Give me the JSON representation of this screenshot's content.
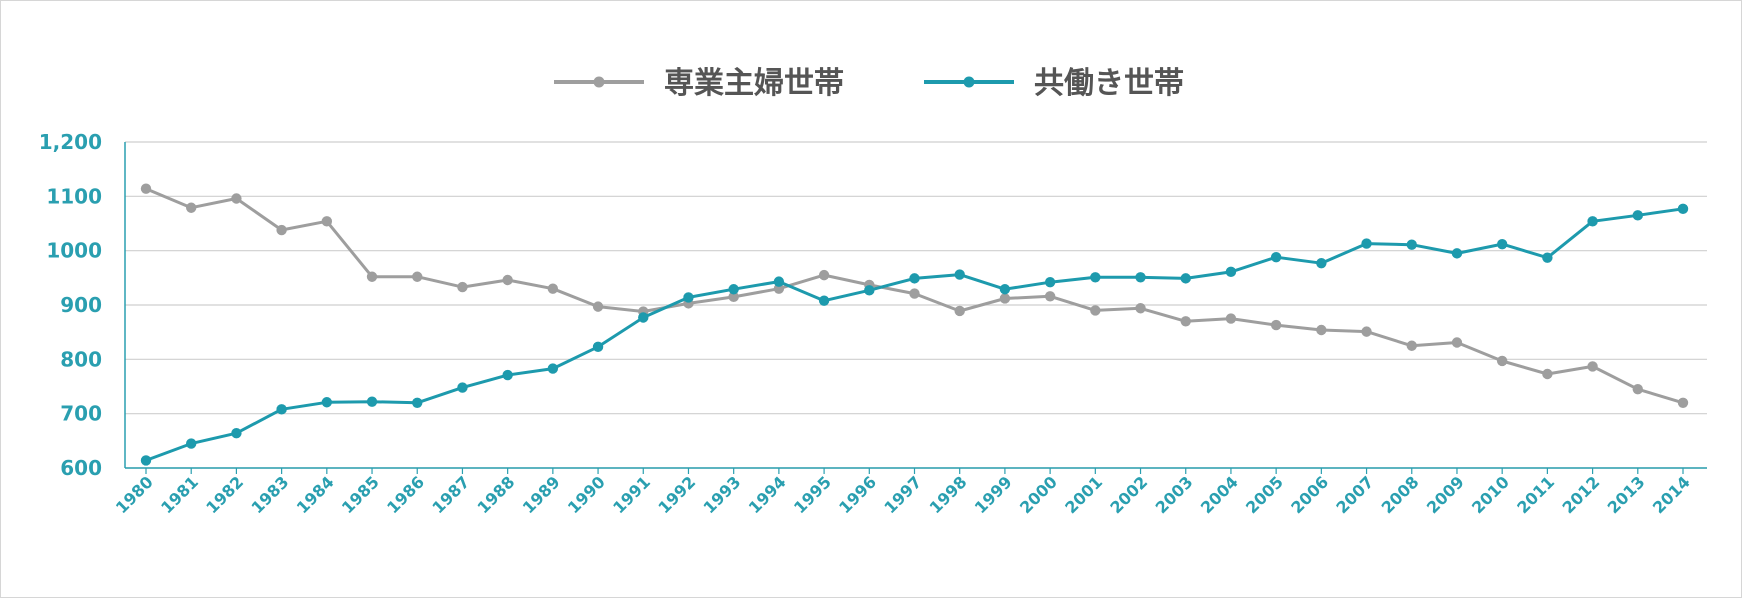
{
  "chart_data": {
    "type": "line",
    "title": "",
    "xlabel": "",
    "ylabel": "",
    "ylim": [
      600,
      1200
    ],
    "y_ticks": [
      600,
      700,
      800,
      900,
      1000,
      1100,
      1200
    ],
    "y_tick_labels": [
      "600",
      "700",
      "800",
      "900",
      "1000",
      "1100",
      "1,200"
    ],
    "grid": "horizontal",
    "legend_position": "top-center",
    "categories": [
      "1980",
      "1981",
      "1982",
      "1983",
      "1984",
      "1985",
      "1986",
      "1987",
      "1988",
      "1989",
      "1990",
      "1991",
      "1992",
      "1993",
      "1994",
      "1995",
      "1996",
      "1997",
      "1998",
      "1999",
      "2000",
      "2001",
      "2002",
      "2003",
      "2004",
      "2005",
      "2006",
      "2007",
      "2008",
      "2009",
      "2010",
      "2011",
      "2012",
      "2013",
      "2014"
    ],
    "series": [
      {
        "name": "専業主婦世帯",
        "color": "#9e9e9e",
        "values": [
          1114,
          1079,
          1096,
          1038,
          1054,
          952,
          952,
          933,
          946,
          930,
          897,
          888,
          903,
          915,
          930,
          955,
          937,
          921,
          889,
          912,
          916,
          890,
          894,
          870,
          875,
          863,
          854,
          851,
          825,
          831,
          797,
          773,
          787,
          745,
          720
        ]
      },
      {
        "name": "共働き世帯",
        "color": "#1d9aad",
        "values": [
          614,
          645,
          664,
          708,
          721,
          722,
          720,
          748,
          771,
          783,
          823,
          877,
          914,
          929,
          943,
          908,
          927,
          949,
          956,
          929,
          942,
          951,
          951,
          949,
          961,
          988,
          977,
          1013,
          1011,
          995,
          1012,
          987,
          1054,
          1065,
          1077
        ]
      }
    ]
  }
}
